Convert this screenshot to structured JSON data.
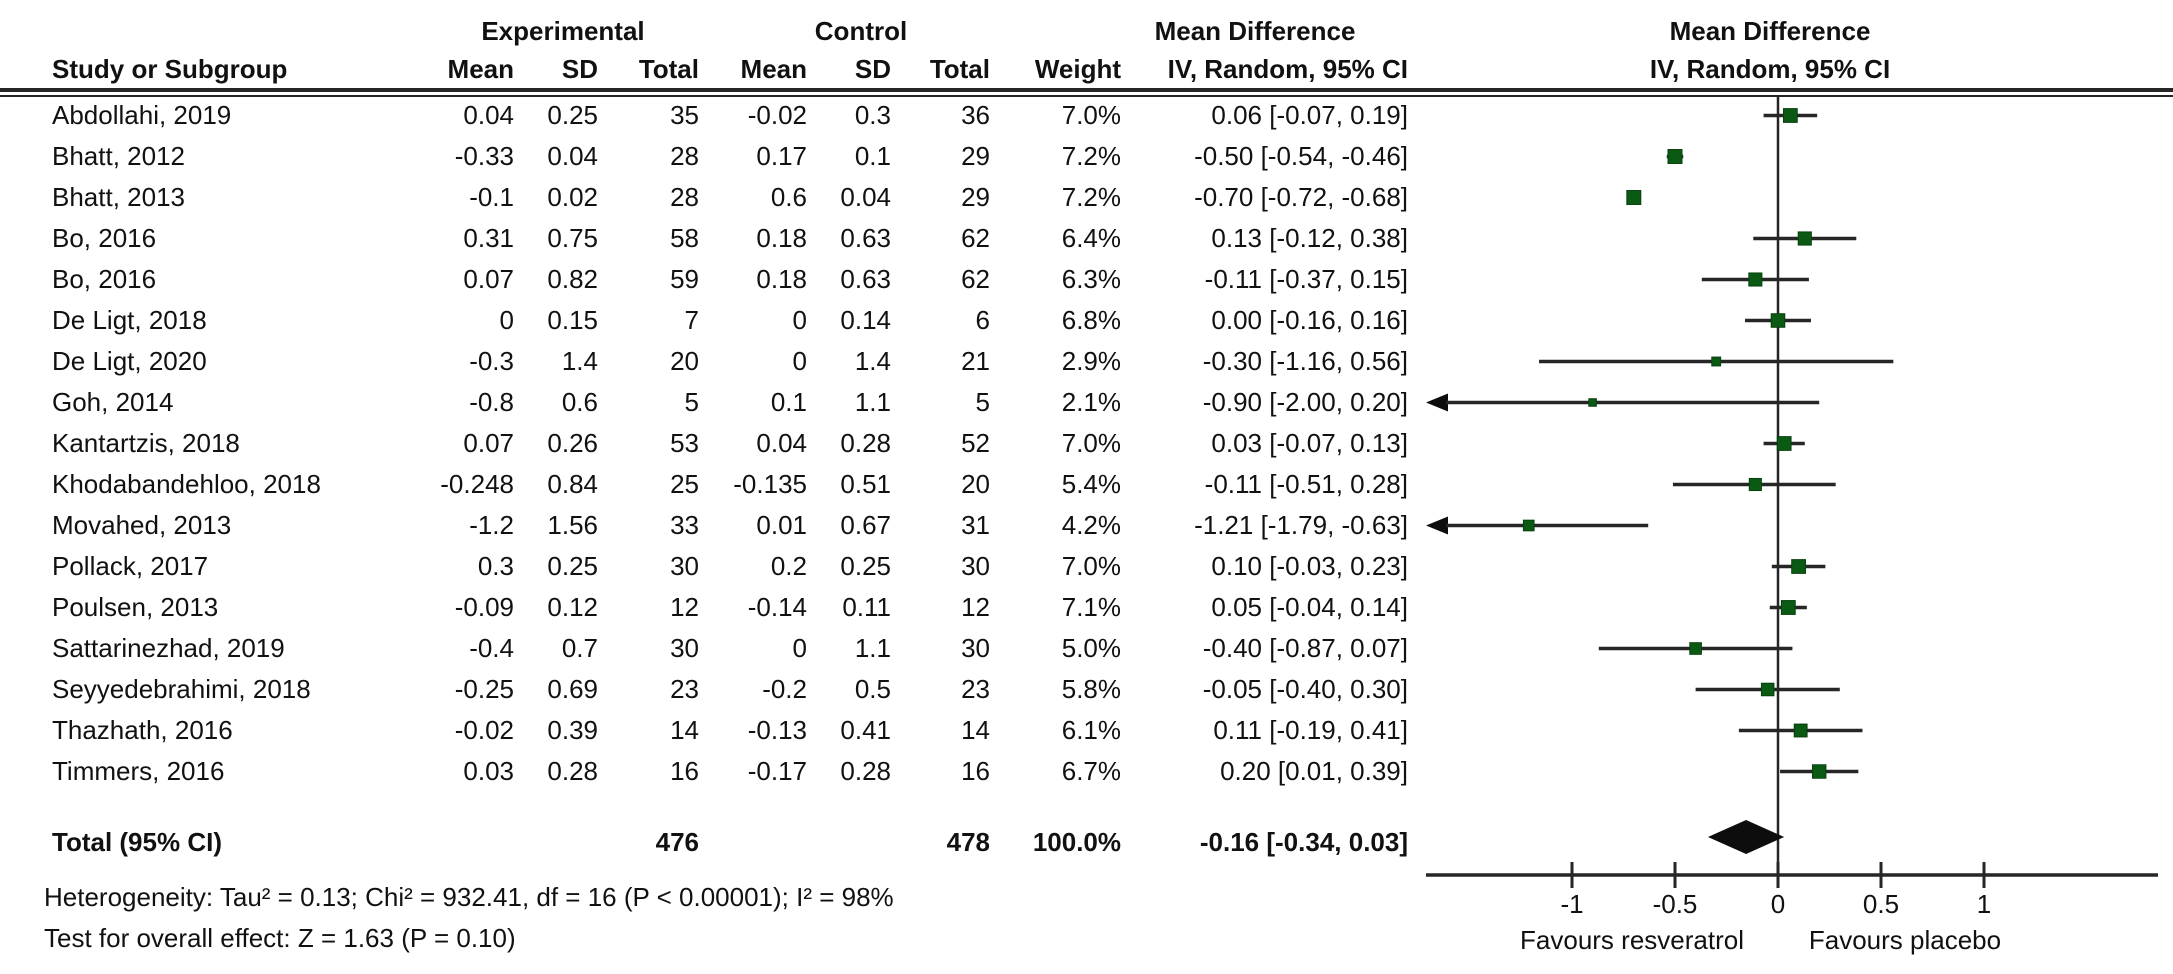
{
  "chart_data": {
    "type": "scatter",
    "subtype": "forest-plot",
    "effect_measure": "Mean Difference",
    "method": "IV, Random, 95% CI",
    "columns": {
      "study": "Study or Subgroup",
      "group1": "Experimental",
      "group2": "Control",
      "mean": "Mean",
      "sd": "SD",
      "total": "Total",
      "weight": "Weight",
      "effect_header_line1": "Mean Difference",
      "effect_header_line2": "IV, Random, 95% CI",
      "plot_header_line1": "Mean Difference",
      "plot_header_line2": "IV, Random, 95% CI"
    },
    "studies": [
      {
        "name": "Abdollahi, 2019",
        "exp_mean": "0.04",
        "exp_sd": "0.25",
        "exp_total": "35",
        "ctl_mean": "-0.02",
        "ctl_sd": "0.3",
        "ctl_total": "36",
        "weight": "7.0%",
        "md_text": "0.06 [-0.07, 0.19]",
        "md": 0.06,
        "lo": -0.07,
        "hi": 0.19
      },
      {
        "name": "Bhatt, 2012",
        "exp_mean": "-0.33",
        "exp_sd": "0.04",
        "exp_total": "28",
        "ctl_mean": "0.17",
        "ctl_sd": "0.1",
        "ctl_total": "29",
        "weight": "7.2%",
        "md_text": "-0.50 [-0.54, -0.46]",
        "md": -0.5,
        "lo": -0.54,
        "hi": -0.46
      },
      {
        "name": "Bhatt, 2013",
        "exp_mean": "-0.1",
        "exp_sd": "0.02",
        "exp_total": "28",
        "ctl_mean": "0.6",
        "ctl_sd": "0.04",
        "ctl_total": "29",
        "weight": "7.2%",
        "md_text": "-0.70 [-0.72, -0.68]",
        "md": -0.7,
        "lo": -0.72,
        "hi": -0.68
      },
      {
        "name": "Bo, 2016",
        "exp_mean": "0.31",
        "exp_sd": "0.75",
        "exp_total": "58",
        "ctl_mean": "0.18",
        "ctl_sd": "0.63",
        "ctl_total": "62",
        "weight": "6.4%",
        "md_text": "0.13 [-0.12, 0.38]",
        "md": 0.13,
        "lo": -0.12,
        "hi": 0.38
      },
      {
        "name": "Bo, 2016",
        "exp_mean": "0.07",
        "exp_sd": "0.82",
        "exp_total": "59",
        "ctl_mean": "0.18",
        "ctl_sd": "0.63",
        "ctl_total": "62",
        "weight": "6.3%",
        "md_text": "-0.11 [-0.37, 0.15]",
        "md": -0.11,
        "lo": -0.37,
        "hi": 0.15
      },
      {
        "name": "De Ligt, 2018",
        "exp_mean": "0",
        "exp_sd": "0.15",
        "exp_total": "7",
        "ctl_mean": "0",
        "ctl_sd": "0.14",
        "ctl_total": "6",
        "weight": "6.8%",
        "md_text": "0.00 [-0.16, 0.16]",
        "md": 0,
        "lo": -0.16,
        "hi": 0.16
      },
      {
        "name": "De Ligt, 2020",
        "exp_mean": "-0.3",
        "exp_sd": "1.4",
        "exp_total": "20",
        "ctl_mean": "0",
        "ctl_sd": "1.4",
        "ctl_total": "21",
        "weight": "2.9%",
        "md_text": "-0.30 [-1.16, 0.56]",
        "md": -0.3,
        "lo": -1.16,
        "hi": 0.56
      },
      {
        "name": "Goh, 2014",
        "exp_mean": "-0.8",
        "exp_sd": "0.6",
        "exp_total": "5",
        "ctl_mean": "0.1",
        "ctl_sd": "1.1",
        "ctl_total": "5",
        "weight": "2.1%",
        "md_text": "-0.90 [-2.00, 0.20]",
        "md": -0.9,
        "lo": -2.0,
        "hi": 0.2
      },
      {
        "name": "Kantartzis, 2018",
        "exp_mean": "0.07",
        "exp_sd": "0.26",
        "exp_total": "53",
        "ctl_mean": "0.04",
        "ctl_sd": "0.28",
        "ctl_total": "52",
        "weight": "7.0%",
        "md_text": "0.03 [-0.07, 0.13]",
        "md": 0.03,
        "lo": -0.07,
        "hi": 0.13
      },
      {
        "name": "Khodabandehloo, 2018",
        "exp_mean": "-0.248",
        "exp_sd": "0.84",
        "exp_total": "25",
        "ctl_mean": "-0.135",
        "ctl_sd": "0.51",
        "ctl_total": "20",
        "weight": "5.4%",
        "md_text": "-0.11 [-0.51, 0.28]",
        "md": -0.11,
        "lo": -0.51,
        "hi": 0.28
      },
      {
        "name": "Movahed, 2013",
        "exp_mean": "-1.2",
        "exp_sd": "1.56",
        "exp_total": "33",
        "ctl_mean": "0.01",
        "ctl_sd": "0.67",
        "ctl_total": "31",
        "weight": "4.2%",
        "md_text": "-1.21 [-1.79, -0.63]",
        "md": -1.21,
        "lo": -1.79,
        "hi": -0.63
      },
      {
        "name": "Pollack, 2017",
        "exp_mean": "0.3",
        "exp_sd": "0.25",
        "exp_total": "30",
        "ctl_mean": "0.2",
        "ctl_sd": "0.25",
        "ctl_total": "30",
        "weight": "7.0%",
        "md_text": "0.10 [-0.03, 0.23]",
        "md": 0.1,
        "lo": -0.03,
        "hi": 0.23
      },
      {
        "name": "Poulsen, 2013",
        "exp_mean": "-0.09",
        "exp_sd": "0.12",
        "exp_total": "12",
        "ctl_mean": "-0.14",
        "ctl_sd": "0.11",
        "ctl_total": "12",
        "weight": "7.1%",
        "md_text": "0.05 [-0.04, 0.14]",
        "md": 0.05,
        "lo": -0.04,
        "hi": 0.14
      },
      {
        "name": "Sattarinezhad, 2019",
        "exp_mean": "-0.4",
        "exp_sd": "0.7",
        "exp_total": "30",
        "ctl_mean": "0",
        "ctl_sd": "1.1",
        "ctl_total": "30",
        "weight": "5.0%",
        "md_text": "-0.40 [-0.87, 0.07]",
        "md": -0.4,
        "lo": -0.87,
        "hi": 0.07
      },
      {
        "name": "Seyyedebrahimi, 2018",
        "exp_mean": "-0.25",
        "exp_sd": "0.69",
        "exp_total": "23",
        "ctl_mean": "-0.2",
        "ctl_sd": "0.5",
        "ctl_total": "23",
        "weight": "5.8%",
        "md_text": "-0.05 [-0.40, 0.30]",
        "md": -0.05,
        "lo": -0.4,
        "hi": 0.3
      },
      {
        "name": "Thazhath, 2016",
        "exp_mean": "-0.02",
        "exp_sd": "0.39",
        "exp_total": "14",
        "ctl_mean": "-0.13",
        "ctl_sd": "0.41",
        "ctl_total": "14",
        "weight": "6.1%",
        "md_text": "0.11 [-0.19, 0.41]",
        "md": 0.11,
        "lo": -0.19,
        "hi": 0.41
      },
      {
        "name": "Timmers, 2016",
        "exp_mean": "0.03",
        "exp_sd": "0.28",
        "exp_total": "16",
        "ctl_mean": "-0.17",
        "ctl_sd": "0.28",
        "ctl_total": "16",
        "weight": "6.7%",
        "md_text": "0.20 [0.01, 0.39]",
        "md": 0.2,
        "lo": 0.01,
        "hi": 0.39
      }
    ],
    "total": {
      "name": "Total (95% CI)",
      "exp_total": "476",
      "ctl_total": "478",
      "weight": "100.0%",
      "md_text": "-0.16 [-0.34, 0.03]",
      "md": -0.16,
      "lo": -0.34,
      "hi": 0.03
    },
    "footnotes": {
      "heterogeneity": "Heterogeneity: Tau² = 0.13; Chi² = 932.41, df = 16 (P < 0.00001); I² = 98%",
      "overall_effect": "Test for overall effect: Z = 1.63 (P = 0.10)"
    },
    "axis": {
      "ticks": [
        "-1",
        "-0.5",
        "0",
        "0.5",
        "1"
      ],
      "tick_values": [
        -1,
        -0.5,
        0,
        0.5,
        1
      ],
      "xlim": [
        -1.71,
        1.84
      ],
      "favours_left": "Favours resveratrol",
      "favours_right": "Favours placebo",
      "grid": false,
      "legend": "none"
    },
    "colors": {
      "marker": "#0a5a14",
      "marker_border": "#06400d",
      "line": "#262626",
      "diamond": "#0d0d0d",
      "text": "#111111"
    }
  }
}
